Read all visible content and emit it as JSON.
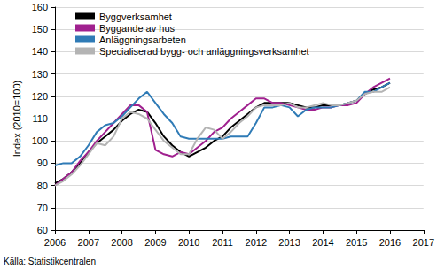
{
  "chart_data": {
    "type": "line",
    "y_label": "Index (2010=100)",
    "annotations": [
      "Källa: Statistikcentralen"
    ],
    "x": [
      2006.0,
      2006.25,
      2006.5,
      2006.75,
      2007.0,
      2007.25,
      2007.5,
      2007.75,
      2008.0,
      2008.25,
      2008.5,
      2008.75,
      2009.0,
      2009.25,
      2009.5,
      2009.75,
      2010.0,
      2010.25,
      2010.5,
      2010.75,
      2011.0,
      2011.25,
      2011.5,
      2011.75,
      2012.0,
      2012.25,
      2012.5,
      2012.75,
      2013.0,
      2013.25,
      2013.5,
      2013.75,
      2014.0,
      2014.25,
      2014.5,
      2014.75,
      2015.0,
      2015.25,
      2015.5,
      2015.75,
      2016.0
    ],
    "series": [
      {
        "name": "Byggverksamhet",
        "color": "#000000",
        "values": [
          81,
          83,
          86,
          90,
          95,
          99,
          102,
          105,
          109,
          112,
          114,
          113,
          108,
          102,
          98,
          95,
          93,
          95,
          97,
          100,
          102,
          106,
          109,
          112,
          115,
          117,
          117,
          117,
          117,
          116,
          115,
          115,
          116,
          116,
          116,
          117,
          118,
          121,
          123,
          124,
          126
        ]
      },
      {
        "name": "Byggande av hus",
        "color": "#a0218f",
        "values": [
          80,
          83,
          86,
          91,
          95,
          100,
          104,
          108,
          112,
          116,
          116,
          113,
          96,
          94,
          93,
          95,
          94,
          97,
          100,
          104,
          106,
          110,
          113,
          116,
          119,
          119,
          117,
          117,
          116,
          115,
          114,
          114,
          115,
          115,
          116,
          116,
          117,
          121,
          124,
          126,
          128
        ]
      },
      {
        "name": "Anläggningsarbeten",
        "color": "#2f7bb6",
        "values": [
          89,
          90,
          90,
          93,
          98,
          104,
          107,
          108,
          111,
          115,
          119,
          122,
          117,
          112,
          108,
          102,
          101,
          101,
          101,
          101,
          101,
          102,
          102,
          102,
          108,
          115,
          115,
          116,
          115,
          111,
          114,
          115,
          115,
          115,
          116,
          117,
          118,
          122,
          122,
          124,
          126
        ]
      },
      {
        "name": "Specialiserad bygg- och anläggningsverksamhet",
        "color": "#b4b4b4",
        "values": [
          80,
          82,
          85,
          89,
          94,
          99,
          98,
          102,
          110,
          113,
          112,
          110,
          105,
          100,
          97,
          94,
          94,
          101,
          106,
          105,
          101,
          104,
          108,
          111,
          115,
          116,
          116,
          116,
          117,
          115,
          115,
          116,
          117,
          116,
          116,
          117,
          118,
          121,
          122,
          122,
          124
        ]
      }
    ],
    "xlim": [
      2006,
      2017
    ],
    "xticks": [
      2006,
      2007,
      2008,
      2009,
      2010,
      2011,
      2012,
      2013,
      2014,
      2015,
      2016,
      2017
    ],
    "ylim": [
      60,
      160
    ],
    "yticks": [
      60,
      70,
      80,
      90,
      100,
      110,
      120,
      130,
      140,
      150,
      160
    ],
    "grid": true,
    "legend": "top-left"
  }
}
